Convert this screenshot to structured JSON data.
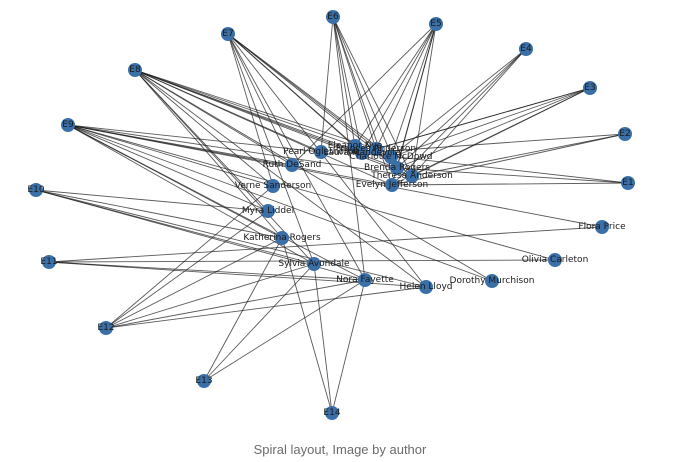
{
  "figure": {
    "caption": "Spiral layout, Image by author"
  },
  "graph": {
    "node_color": "#3a6fa8",
    "edge_color": "#1a1a1a",
    "nodes": [
      {
        "id": "E1",
        "label": "E1"
      },
      {
        "id": "E2",
        "label": "E2"
      },
      {
        "id": "E3",
        "label": "E3"
      },
      {
        "id": "E4",
        "label": "E4"
      },
      {
        "id": "E5",
        "label": "E5"
      },
      {
        "id": "E6",
        "label": "E6"
      },
      {
        "id": "E7",
        "label": "E7"
      },
      {
        "id": "E8",
        "label": "E8"
      },
      {
        "id": "E9",
        "label": "E9"
      },
      {
        "id": "E10",
        "label": "E10"
      },
      {
        "id": "E11",
        "label": "E11"
      },
      {
        "id": "E12",
        "label": "E12"
      },
      {
        "id": "E13",
        "label": "E13"
      },
      {
        "id": "E14",
        "label": "E14"
      },
      {
        "id": "flora",
        "label": "Flora Price"
      },
      {
        "id": "olivia",
        "label": "Olivia Carleton"
      },
      {
        "id": "dorothy",
        "label": "Dorothy Murchison"
      },
      {
        "id": "helen",
        "label": "Helen Lloyd"
      },
      {
        "id": "nora",
        "label": "Nora Fayette"
      },
      {
        "id": "sylvia",
        "label": "Sylvia Avondale"
      },
      {
        "id": "katherina",
        "label": "Katherina Rogers"
      },
      {
        "id": "myra",
        "label": "Myra Liddel"
      },
      {
        "id": "verne",
        "label": "Verne Sanderson"
      },
      {
        "id": "ruth",
        "label": "Ruth DeSand"
      },
      {
        "id": "pearl",
        "label": "Pearl Oglethorpe"
      },
      {
        "id": "laura",
        "label": "Laura Mandeville"
      },
      {
        "id": "evelyn",
        "label": "Evelyn Jefferson"
      },
      {
        "id": "brenda",
        "label": "Brenda Rogers"
      },
      {
        "id": "theresa",
        "label": "Theresa Anderson"
      },
      {
        "id": "charlotte",
        "label": "Charlotte McDowd"
      },
      {
        "id": "eleanor",
        "label": "Eleanor Nye"
      },
      {
        "id": "frances",
        "label": "Frances Anderson"
      }
    ],
    "edges": [
      [
        "evelyn",
        "E1"
      ],
      [
        "evelyn",
        "E2"
      ],
      [
        "evelyn",
        "E3"
      ],
      [
        "evelyn",
        "E4"
      ],
      [
        "evelyn",
        "E5"
      ],
      [
        "evelyn",
        "E6"
      ],
      [
        "evelyn",
        "E8"
      ],
      [
        "evelyn",
        "E9"
      ],
      [
        "laura",
        "E1"
      ],
      [
        "laura",
        "E2"
      ],
      [
        "laura",
        "E3"
      ],
      [
        "laura",
        "E5"
      ],
      [
        "laura",
        "E6"
      ],
      [
        "laura",
        "E7"
      ],
      [
        "laura",
        "E8"
      ],
      [
        "theresa",
        "E2"
      ],
      [
        "theresa",
        "E3"
      ],
      [
        "theresa",
        "E4"
      ],
      [
        "theresa",
        "E5"
      ],
      [
        "theresa",
        "E6"
      ],
      [
        "theresa",
        "E7"
      ],
      [
        "theresa",
        "E8"
      ],
      [
        "theresa",
        "E9"
      ],
      [
        "brenda",
        "E1"
      ],
      [
        "brenda",
        "E3"
      ],
      [
        "brenda",
        "E4"
      ],
      [
        "brenda",
        "E5"
      ],
      [
        "brenda",
        "E6"
      ],
      [
        "brenda",
        "E7"
      ],
      [
        "brenda",
        "E8"
      ],
      [
        "charlotte",
        "E3"
      ],
      [
        "charlotte",
        "E4"
      ],
      [
        "charlotte",
        "E5"
      ],
      [
        "charlotte",
        "E7"
      ],
      [
        "frances",
        "E3"
      ],
      [
        "frances",
        "E5"
      ],
      [
        "frances",
        "E6"
      ],
      [
        "frances",
        "E8"
      ],
      [
        "eleanor",
        "E5"
      ],
      [
        "eleanor",
        "E6"
      ],
      [
        "eleanor",
        "E7"
      ],
      [
        "eleanor",
        "E8"
      ],
      [
        "pearl",
        "E6"
      ],
      [
        "pearl",
        "E8"
      ],
      [
        "pearl",
        "E9"
      ],
      [
        "ruth",
        "E5"
      ],
      [
        "ruth",
        "E7"
      ],
      [
        "ruth",
        "E8"
      ],
      [
        "ruth",
        "E9"
      ],
      [
        "verne",
        "E7"
      ],
      [
        "verne",
        "E8"
      ],
      [
        "verne",
        "E9"
      ],
      [
        "verne",
        "E12"
      ],
      [
        "myra",
        "E8"
      ],
      [
        "myra",
        "E9"
      ],
      [
        "myra",
        "E10"
      ],
      [
        "myra",
        "E12"
      ],
      [
        "katherina",
        "E8"
      ],
      [
        "katherina",
        "E9"
      ],
      [
        "katherina",
        "E10"
      ],
      [
        "katherina",
        "E12"
      ],
      [
        "katherina",
        "E13"
      ],
      [
        "katherina",
        "E14"
      ],
      [
        "sylvia",
        "E7"
      ],
      [
        "sylvia",
        "E8"
      ],
      [
        "sylvia",
        "E9"
      ],
      [
        "sylvia",
        "E10"
      ],
      [
        "sylvia",
        "E12"
      ],
      [
        "sylvia",
        "E13"
      ],
      [
        "sylvia",
        "E14"
      ],
      [
        "nora",
        "E6"
      ],
      [
        "nora",
        "E7"
      ],
      [
        "nora",
        "E9"
      ],
      [
        "nora",
        "E10"
      ],
      [
        "nora",
        "E11"
      ],
      [
        "nora",
        "E12"
      ],
      [
        "nora",
        "E13"
      ],
      [
        "nora",
        "E14"
      ],
      [
        "helen",
        "E7"
      ],
      [
        "helen",
        "E8"
      ],
      [
        "helen",
        "E10"
      ],
      [
        "helen",
        "E11"
      ],
      [
        "helen",
        "E12"
      ],
      [
        "dorothy",
        "E8"
      ],
      [
        "dorothy",
        "E9"
      ],
      [
        "olivia",
        "E9"
      ],
      [
        "olivia",
        "E11"
      ],
      [
        "flora",
        "E9"
      ],
      [
        "flora",
        "E11"
      ]
    ]
  }
}
